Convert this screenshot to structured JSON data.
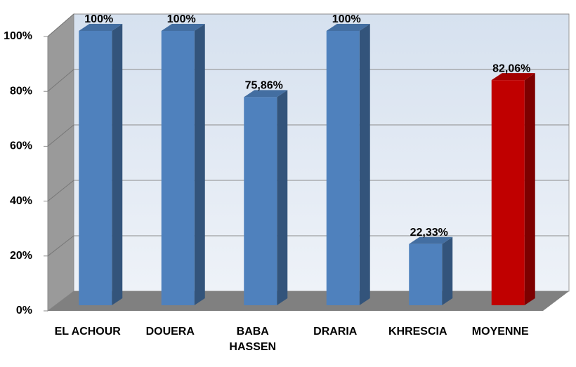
{
  "chart_data": {
    "type": "bar3d",
    "categories": [
      "EL ACHOUR",
      "DOUERA",
      "BABA\nHASSEN",
      "DRARIA",
      "KHRESCIA",
      "MOYENNE"
    ],
    "values": [
      100,
      100,
      75.86,
      100,
      22.33,
      82.06
    ],
    "value_labels": [
      "100%",
      "100%",
      "75,86%",
      "100%",
      "22,33%",
      "82,06%"
    ],
    "colors": [
      "#4f81bd",
      "#4f81bd",
      "#4f81bd",
      "#4f81bd",
      "#4f81bd",
      "#c00000"
    ],
    "ylim": [
      0,
      100
    ],
    "yticks": [
      {
        "value": 0,
        "label": "0%"
      },
      {
        "value": 20,
        "label": "20%"
      },
      {
        "value": 40,
        "label": "40%"
      },
      {
        "value": 60,
        "label": "60%"
      },
      {
        "value": 80,
        "label": "80%"
      },
      {
        "value": 100,
        "label": "100%"
      }
    ],
    "grid": true
  }
}
